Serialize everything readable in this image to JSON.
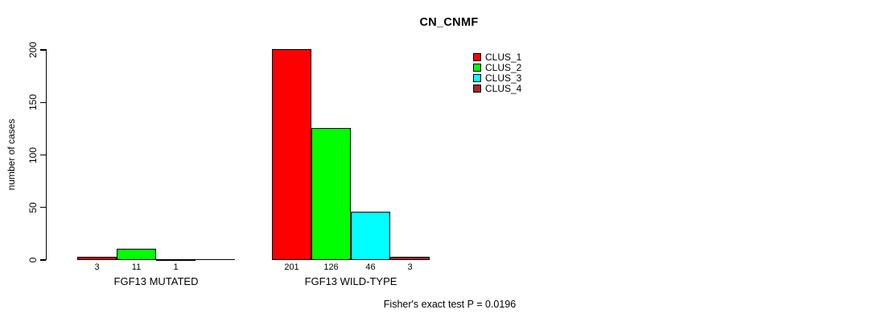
{
  "chart_data": {
    "type": "bar",
    "title": "CN_CNMF",
    "xlabel": "",
    "ylabel": "number of cases",
    "groups": [
      "FGF13 MUTATED",
      "FGF13 WILD-TYPE"
    ],
    "series": [
      {
        "name": "CLUS_1",
        "color": "#ff0000",
        "values": [
          3,
          201
        ]
      },
      {
        "name": "CLUS_2",
        "color": "#00ff00",
        "values": [
          11,
          126
        ]
      },
      {
        "name": "CLUS_3",
        "color": "#00ffff",
        "values": [
          1,
          46
        ]
      },
      {
        "name": "CLUS_4",
        "color": "#a52a2a",
        "values": [
          0,
          3
        ]
      }
    ],
    "bar_labels": [
      [
        "3",
        "11",
        "1",
        ""
      ],
      [
        "201",
        "126",
        "46",
        "3"
      ]
    ],
    "yticks": [
      0,
      50,
      100,
      150,
      200
    ],
    "ylim": [
      0,
      200
    ],
    "grid": false,
    "legend_position": "top-right",
    "annotation": "Fisher's exact test P = 0.0196"
  }
}
